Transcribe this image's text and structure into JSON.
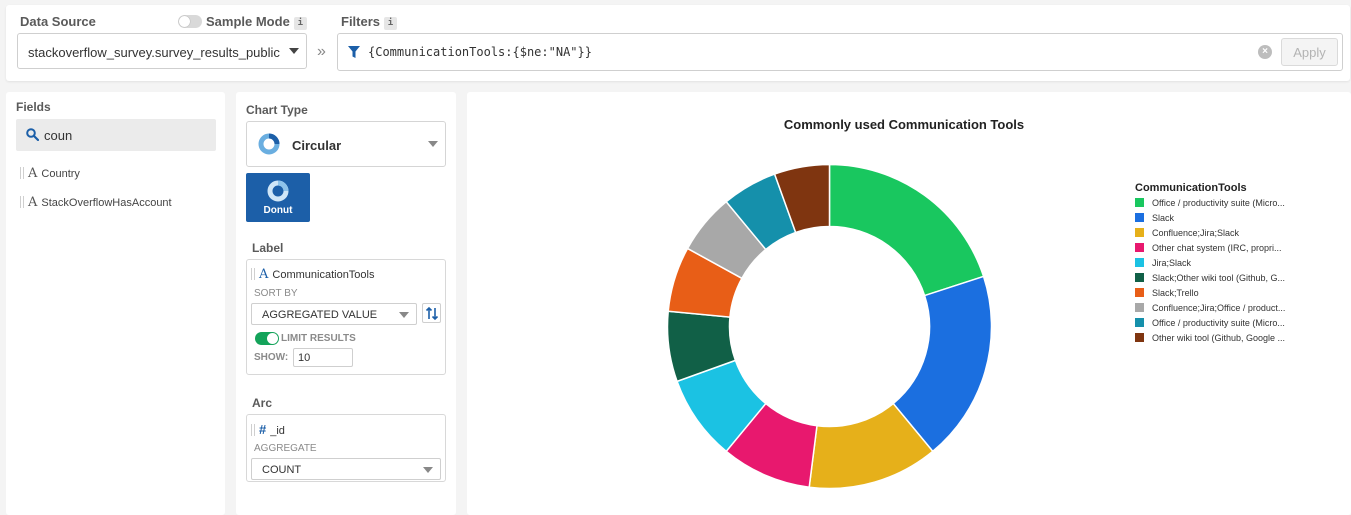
{
  "topbar": {
    "data_source_label": "Data Source",
    "sample_mode_label": "Sample Mode",
    "info_glyph": "i",
    "filters_label": "Filters",
    "data_source_value": "stackoverflow_survey.survey_results_public",
    "filter_query": "{CommunicationTools:{$ne:\"NA\"}}",
    "apply_label": "Apply",
    "clear_glyph": "×",
    "chevron_glyph": "»"
  },
  "fields": {
    "title": "Fields",
    "search_value": "coun",
    "type_glyph": "A",
    "items": [
      "Country",
      "StackOverflowHasAccount"
    ]
  },
  "encoding": {
    "chart_type_label": "Chart Type",
    "chart_type_value": "Circular",
    "subtype_label": "Donut",
    "label_section": "Label",
    "label_field": "CommunicationTools",
    "sort_by_label": "SORT BY",
    "sort_by_value": "AGGREGATED VALUE",
    "limit_results_label": "LIMIT RESULTS",
    "show_label": "SHOW:",
    "show_value": "10",
    "arc_section": "Arc",
    "arc_field": "_id",
    "arc_glyph": "#",
    "aggregate_label": "AGGREGATE",
    "aggregate_value": "COUNT"
  },
  "chart_data": {
    "type": "pie",
    "title": "Commonly used Communication Tools",
    "legend_title": "CommunicationTools",
    "legend_position": "right",
    "donut": true,
    "slices": [
      {
        "label": "Office / productivity suite (Micro...",
        "value": 20.0,
        "color": "#19c75f"
      },
      {
        "label": "Slack",
        "value": 19.0,
        "color": "#1b6fe0"
      },
      {
        "label": "Confluence;Jira;Slack",
        "value": 13.0,
        "color": "#e6b01a"
      },
      {
        "label": "Other chat system (IRC, propri...",
        "value": 9.0,
        "color": "#e8186e"
      },
      {
        "label": "Jira;Slack",
        "value": 8.5,
        "color": "#1bc2e3"
      },
      {
        "label": "Slack;Other wiki tool (Github, G...",
        "value": 7.0,
        "color": "#116047"
      },
      {
        "label": "Slack;Trello",
        "value": 6.5,
        "color": "#e85e17"
      },
      {
        "label": "Confluence;Jira;Office / product...",
        "value": 6.0,
        "color": "#a8a8a8"
      },
      {
        "label": "Office / productivity suite (Micro...",
        "value": 5.5,
        "color": "#1590ab"
      },
      {
        "label": "Other wiki tool (Github, Google ...",
        "value": 5.5,
        "color": "#7f3510"
      }
    ]
  }
}
